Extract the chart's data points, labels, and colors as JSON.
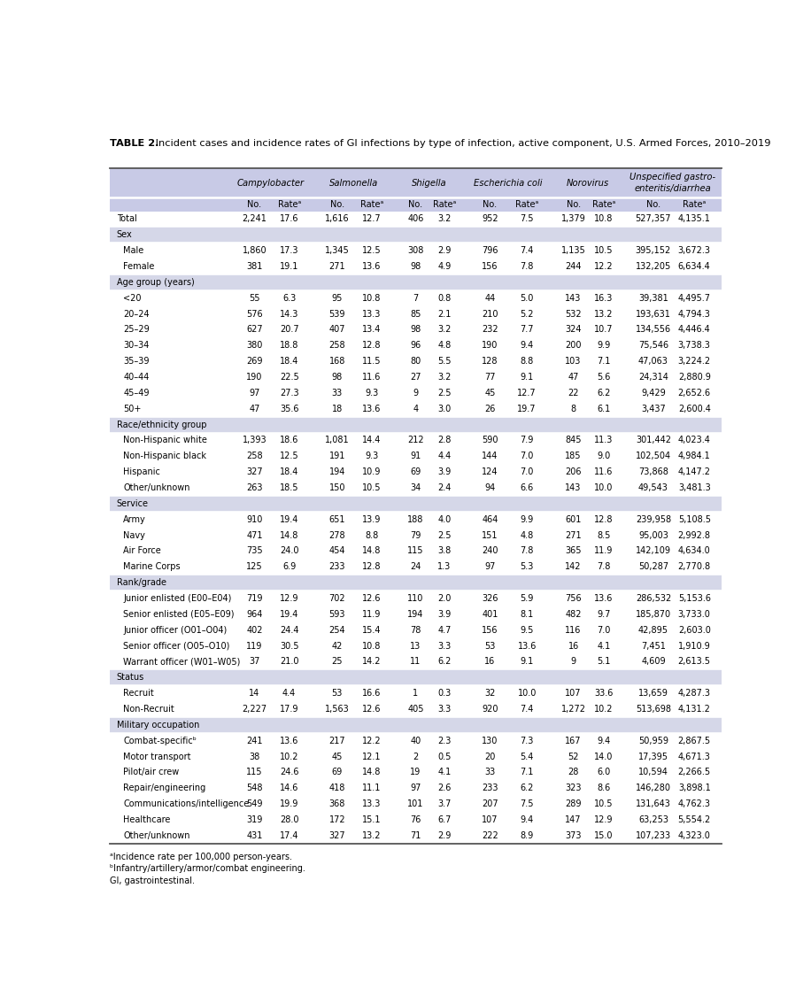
{
  "title_bold": "TABLE 2.",
  "title_rest": " Incident cases and incidence rates of GI infections by type of infection, active component, U.S. Armed Forces, 2010–2019",
  "col_groups": [
    "Campylobacter",
    "Salmonella",
    "Shigella",
    "Escherichia coli",
    "Norovirus",
    "Unspecified gastro-\nenteritis/diarrhea"
  ],
  "rows": [
    {
      "label": "Total",
      "indent": 0,
      "section": false,
      "data": [
        "2,241",
        "17.6",
        "1,616",
        "12.7",
        "406",
        "3.2",
        "952",
        "7.5",
        "1,379",
        "10.8",
        "527,357",
        "4,135.1"
      ]
    },
    {
      "label": "Sex",
      "indent": 0,
      "section": true,
      "data": []
    },
    {
      "label": "Male",
      "indent": 1,
      "section": false,
      "data": [
        "1,860",
        "17.3",
        "1,345",
        "12.5",
        "308",
        "2.9",
        "796",
        "7.4",
        "1,135",
        "10.5",
        "395,152",
        "3,672.3"
      ]
    },
    {
      "label": "Female",
      "indent": 1,
      "section": false,
      "data": [
        "381",
        "19.1",
        "271",
        "13.6",
        "98",
        "4.9",
        "156",
        "7.8",
        "244",
        "12.2",
        "132,205",
        "6,634.4"
      ]
    },
    {
      "label": "Age group (years)",
      "indent": 0,
      "section": true,
      "data": []
    },
    {
      "label": "<20",
      "indent": 1,
      "section": false,
      "data": [
        "55",
        "6.3",
        "95",
        "10.8",
        "7",
        "0.8",
        "44",
        "5.0",
        "143",
        "16.3",
        "39,381",
        "4,495.7"
      ]
    },
    {
      "label": "20–24",
      "indent": 1,
      "section": false,
      "data": [
        "576",
        "14.3",
        "539",
        "13.3",
        "85",
        "2.1",
        "210",
        "5.2",
        "532",
        "13.2",
        "193,631",
        "4,794.3"
      ]
    },
    {
      "label": "25–29",
      "indent": 1,
      "section": false,
      "data": [
        "627",
        "20.7",
        "407",
        "13.4",
        "98",
        "3.2",
        "232",
        "7.7",
        "324",
        "10.7",
        "134,556",
        "4,446.4"
      ]
    },
    {
      "label": "30–34",
      "indent": 1,
      "section": false,
      "data": [
        "380",
        "18.8",
        "258",
        "12.8",
        "96",
        "4.8",
        "190",
        "9.4",
        "200",
        "9.9",
        "75,546",
        "3,738.3"
      ]
    },
    {
      "label": "35–39",
      "indent": 1,
      "section": false,
      "data": [
        "269",
        "18.4",
        "168",
        "11.5",
        "80",
        "5.5",
        "128",
        "8.8",
        "103",
        "7.1",
        "47,063",
        "3,224.2"
      ]
    },
    {
      "label": "40–44",
      "indent": 1,
      "section": false,
      "data": [
        "190",
        "22.5",
        "98",
        "11.6",
        "27",
        "3.2",
        "77",
        "9.1",
        "47",
        "5.6",
        "24,314",
        "2,880.9"
      ]
    },
    {
      "label": "45–49",
      "indent": 1,
      "section": false,
      "data": [
        "97",
        "27.3",
        "33",
        "9.3",
        "9",
        "2.5",
        "45",
        "12.7",
        "22",
        "6.2",
        "9,429",
        "2,652.6"
      ]
    },
    {
      "label": "50+",
      "indent": 1,
      "section": false,
      "data": [
        "47",
        "35.6",
        "18",
        "13.6",
        "4",
        "3.0",
        "26",
        "19.7",
        "8",
        "6.1",
        "3,437",
        "2,600.4"
      ]
    },
    {
      "label": "Race/ethnicity group",
      "indent": 0,
      "section": true,
      "data": []
    },
    {
      "label": "Non-Hispanic white",
      "indent": 1,
      "section": false,
      "data": [
        "1,393",
        "18.6",
        "1,081",
        "14.4",
        "212",
        "2.8",
        "590",
        "7.9",
        "845",
        "11.3",
        "301,442",
        "4,023.4"
      ]
    },
    {
      "label": "Non-Hispanic black",
      "indent": 1,
      "section": false,
      "data": [
        "258",
        "12.5",
        "191",
        "9.3",
        "91",
        "4.4",
        "144",
        "7.0",
        "185",
        "9.0",
        "102,504",
        "4,984.1"
      ]
    },
    {
      "label": "Hispanic",
      "indent": 1,
      "section": false,
      "data": [
        "327",
        "18.4",
        "194",
        "10.9",
        "69",
        "3.9",
        "124",
        "7.0",
        "206",
        "11.6",
        "73,868",
        "4,147.2"
      ]
    },
    {
      "label": "Other/unknown",
      "indent": 1,
      "section": false,
      "data": [
        "263",
        "18.5",
        "150",
        "10.5",
        "34",
        "2.4",
        "94",
        "6.6",
        "143",
        "10.0",
        "49,543",
        "3,481.3"
      ]
    },
    {
      "label": "Service",
      "indent": 0,
      "section": true,
      "data": []
    },
    {
      "label": "Army",
      "indent": 1,
      "section": false,
      "data": [
        "910",
        "19.4",
        "651",
        "13.9",
        "188",
        "4.0",
        "464",
        "9.9",
        "601",
        "12.8",
        "239,958",
        "5,108.5"
      ]
    },
    {
      "label": "Navy",
      "indent": 1,
      "section": false,
      "data": [
        "471",
        "14.8",
        "278",
        "8.8",
        "79",
        "2.5",
        "151",
        "4.8",
        "271",
        "8.5",
        "95,003",
        "2,992.8"
      ]
    },
    {
      "label": "Air Force",
      "indent": 1,
      "section": false,
      "data": [
        "735",
        "24.0",
        "454",
        "14.8",
        "115",
        "3.8",
        "240",
        "7.8",
        "365",
        "11.9",
        "142,109",
        "4,634.0"
      ]
    },
    {
      "label": "Marine Corps",
      "indent": 1,
      "section": false,
      "data": [
        "125",
        "6.9",
        "233",
        "12.8",
        "24",
        "1.3",
        "97",
        "5.3",
        "142",
        "7.8",
        "50,287",
        "2,770.8"
      ]
    },
    {
      "label": "Rank/grade",
      "indent": 0,
      "section": true,
      "data": []
    },
    {
      "label": "Junior enlisted (E00–E04)",
      "indent": 1,
      "section": false,
      "data": [
        "719",
        "12.9",
        "702",
        "12.6",
        "110",
        "2.0",
        "326",
        "5.9",
        "756",
        "13.6",
        "286,532",
        "5,153.6"
      ]
    },
    {
      "label": "Senior enlisted (E05–E09)",
      "indent": 1,
      "section": false,
      "data": [
        "964",
        "19.4",
        "593",
        "11.9",
        "194",
        "3.9",
        "401",
        "8.1",
        "482",
        "9.7",
        "185,870",
        "3,733.0"
      ]
    },
    {
      "label": "Junior officer (O01–O04)",
      "indent": 1,
      "section": false,
      "data": [
        "402",
        "24.4",
        "254",
        "15.4",
        "78",
        "4.7",
        "156",
        "9.5",
        "116",
        "7.0",
        "42,895",
        "2,603.0"
      ]
    },
    {
      "label": "Senior officer (O05–O10)",
      "indent": 1,
      "section": false,
      "data": [
        "119",
        "30.5",
        "42",
        "10.8",
        "13",
        "3.3",
        "53",
        "13.6",
        "16",
        "4.1",
        "7,451",
        "1,910.9"
      ]
    },
    {
      "label": "Warrant officer (W01–W05)",
      "indent": 1,
      "section": false,
      "data": [
        "37",
        "21.0",
        "25",
        "14.2",
        "11",
        "6.2",
        "16",
        "9.1",
        "9",
        "5.1",
        "4,609",
        "2,613.5"
      ]
    },
    {
      "label": "Status",
      "indent": 0,
      "section": true,
      "data": []
    },
    {
      "label": "Recruit",
      "indent": 1,
      "section": false,
      "data": [
        "14",
        "4.4",
        "53",
        "16.6",
        "1",
        "0.3",
        "32",
        "10.0",
        "107",
        "33.6",
        "13,659",
        "4,287.3"
      ]
    },
    {
      "label": "Non-Recruit",
      "indent": 1,
      "section": false,
      "data": [
        "2,227",
        "17.9",
        "1,563",
        "12.6",
        "405",
        "3.3",
        "920",
        "7.4",
        "1,272",
        "10.2",
        "513,698",
        "4,131.2"
      ]
    },
    {
      "label": "Military occupation",
      "indent": 0,
      "section": true,
      "data": []
    },
    {
      "label": "Combat-specificᵇ",
      "indent": 1,
      "section": false,
      "data": [
        "241",
        "13.6",
        "217",
        "12.2",
        "40",
        "2.3",
        "130",
        "7.3",
        "167",
        "9.4",
        "50,959",
        "2,867.5"
      ]
    },
    {
      "label": "Motor transport",
      "indent": 1,
      "section": false,
      "data": [
        "38",
        "10.2",
        "45",
        "12.1",
        "2",
        "0.5",
        "20",
        "5.4",
        "52",
        "14.0",
        "17,395",
        "4,671.3"
      ]
    },
    {
      "label": "Pilot/air crew",
      "indent": 1,
      "section": false,
      "data": [
        "115",
        "24.6",
        "69",
        "14.8",
        "19",
        "4.1",
        "33",
        "7.1",
        "28",
        "6.0",
        "10,594",
        "2,266.5"
      ]
    },
    {
      "label": "Repair/engineering",
      "indent": 1,
      "section": false,
      "data": [
        "548",
        "14.6",
        "418",
        "11.1",
        "97",
        "2.6",
        "233",
        "6.2",
        "323",
        "8.6",
        "146,280",
        "3,898.1"
      ]
    },
    {
      "label": "Communications/intelligence",
      "indent": 1,
      "section": false,
      "data": [
        "549",
        "19.9",
        "368",
        "13.3",
        "101",
        "3.7",
        "207",
        "7.5",
        "289",
        "10.5",
        "131,643",
        "4,762.3"
      ]
    },
    {
      "label": "Healthcare",
      "indent": 1,
      "section": false,
      "data": [
        "319",
        "28.0",
        "172",
        "15.1",
        "76",
        "6.7",
        "107",
        "9.4",
        "147",
        "12.9",
        "63,253",
        "5,554.2"
      ]
    },
    {
      "label": "Other/unknown",
      "indent": 1,
      "section": false,
      "data": [
        "431",
        "17.4",
        "327",
        "13.2",
        "71",
        "2.9",
        "222",
        "8.9",
        "373",
        "15.0",
        "107,233",
        "4,323.0"
      ]
    }
  ],
  "footnotes": [
    "ᵃIncidence rate per 100,000 person-years.",
    "ᵇInfantry/artillery/armor/combat engineering.",
    "GI, gastrointestinal."
  ],
  "header_bg": "#c8cae6",
  "section_bg": "#d5d7e8",
  "white_bg": "#ffffff",
  "sep_line_color": "#ffffff",
  "outer_line_color": "#555555"
}
